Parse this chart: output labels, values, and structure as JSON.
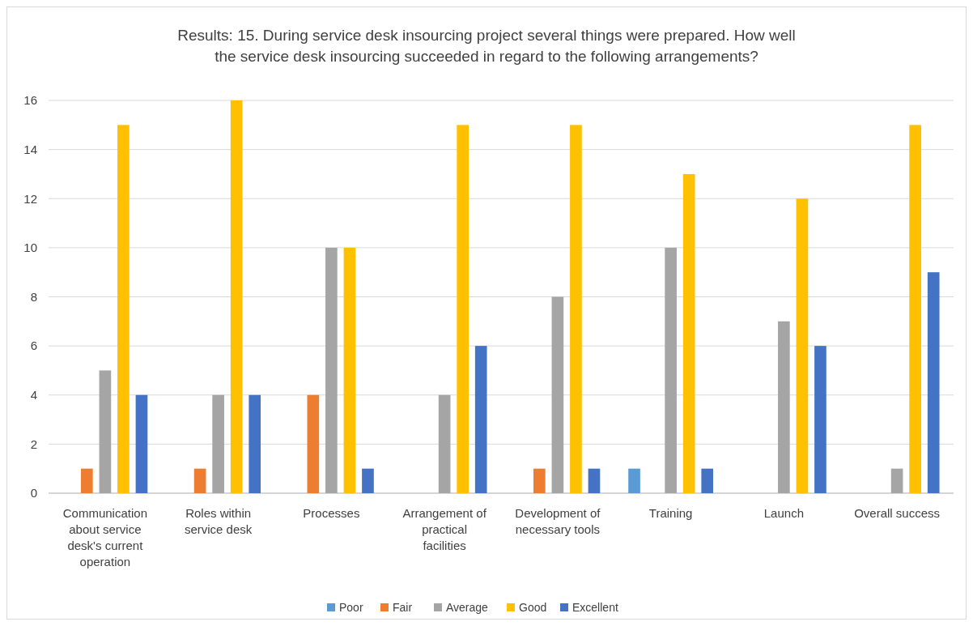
{
  "chart_data": {
    "type": "bar",
    "title": "Results: 15. During service desk insourcing project several things were prepared. How well the service desk insourcing succeeded in regard to the following arrangements?",
    "categories": [
      "Communication about service desk's current operation",
      "Roles within service desk",
      "Processes",
      "Arrangement of practical facilities",
      "Development of necessary tools",
      "Training",
      "Launch",
      "Overall success"
    ],
    "series": [
      {
        "name": "Poor",
        "color": "#5b9bd5",
        "values": [
          0,
          0,
          0,
          0,
          0,
          1,
          0,
          0
        ]
      },
      {
        "name": "Fair",
        "color": "#ed7d31",
        "values": [
          1,
          1,
          4,
          0,
          1,
          0,
          0,
          0
        ]
      },
      {
        "name": "Average",
        "color": "#a5a5a5",
        "values": [
          5,
          4,
          10,
          4,
          8,
          10,
          7,
          1
        ]
      },
      {
        "name": "Good",
        "color": "#ffc000",
        "values": [
          15,
          16,
          10,
          15,
          15,
          13,
          12,
          15
        ]
      },
      {
        "name": "Excellent",
        "color": "#4472c4",
        "values": [
          4,
          4,
          1,
          6,
          1,
          1,
          6,
          9
        ]
      }
    ],
    "ylim": [
      0,
      16
    ],
    "yticks": [
      0,
      2,
      4,
      6,
      8,
      10,
      12,
      14,
      16
    ],
    "grid": "y",
    "legend": "bottom"
  }
}
